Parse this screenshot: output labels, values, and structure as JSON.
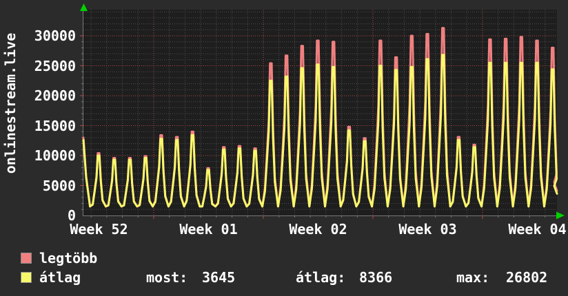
{
  "window": {
    "background": "#2b2b2b",
    "plot_background": "#1e1e1e",
    "text_color": "#ffffff",
    "axis_color": "#777777",
    "arrow_color": "#00d000"
  },
  "chart": {
    "vertical_title": "onlinestream.live",
    "legend": [
      {
        "label": "legtöbb",
        "color": "#f08080"
      },
      {
        "label": "átlag",
        "color": "#f8f86b"
      }
    ],
    "stats": [
      {
        "label": "most:",
        "value": "3645"
      },
      {
        "label": "átlag:",
        "value": "8366"
      },
      {
        "label": "max:",
        "value": "26802"
      }
    ]
  },
  "chart_data": {
    "type": "line",
    "title": "onlinestream.live",
    "xlabel": "",
    "ylabel": "onlinestream.live",
    "x_tick_labels": [
      "Week 52",
      "Week 01",
      "Week 02",
      "Week 03",
      "Week 04"
    ],
    "y_ticks": [
      0,
      5000,
      10000,
      15000,
      20000,
      25000,
      30000
    ],
    "ylim": [
      0,
      34400
    ],
    "grid": {
      "minor_y_step": 1000,
      "major_y_step": 5000,
      "minor_x_step": "1 day",
      "major_x_step": "1 week",
      "minor_color": "#4f4f4f",
      "major_color": "#b04848"
    },
    "legend_position": "bottom-left",
    "trough": 1500,
    "series": [
      {
        "name": "legtöbb",
        "color": "#f08080",
        "start": 13000,
        "end": 4100,
        "daily_peaks": [
          10400,
          9600,
          9600,
          9900,
          13400,
          13100,
          14000,
          7900,
          11400,
          11600,
          11200,
          25400,
          26700,
          28300,
          29200,
          29000,
          14800,
          12900,
          29200,
          26400,
          30000,
          30300,
          31300,
          13100,
          11800,
          29400,
          29500,
          29800,
          29200,
          28000
        ]
      },
      {
        "name": "átlag",
        "color": "#f8f86b",
        "start": 12600,
        "end": 3645,
        "daily_peaks": [
          10000,
          9300,
          9300,
          9600,
          12800,
          12600,
          13400,
          7600,
          11000,
          11200,
          10800,
          22500,
          23200,
          24600,
          25200,
          24800,
          14200,
          12400,
          25000,
          24300,
          24800,
          26100,
          26802,
          12600,
          11400,
          25500,
          25500,
          25500,
          25500,
          24400
        ]
      }
    ],
    "stats": {
      "most": 3645,
      "átlag": 8366,
      "max": 26802
    }
  }
}
